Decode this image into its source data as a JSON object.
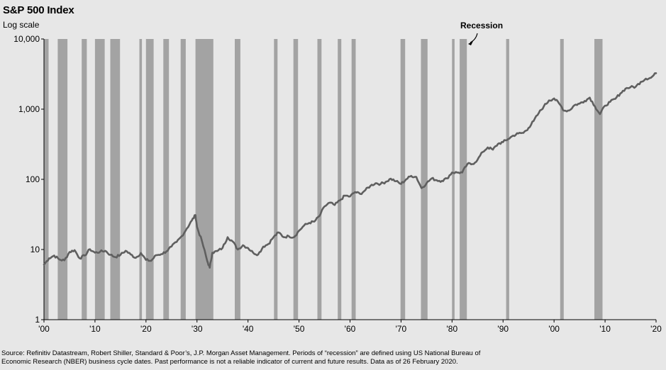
{
  "chart_data": {
    "type": "line",
    "title": "S&P 500 Index",
    "subtitle": "Log scale",
    "annotation": "Recession",
    "yscale": "log",
    "ylim": [
      1,
      10000
    ],
    "xlim": [
      1900,
      2020
    ],
    "yticks": [
      {
        "value": 10000,
        "label": "10,000"
      },
      {
        "value": 1000,
        "label": "1,000"
      },
      {
        "value": 100,
        "label": "100"
      },
      {
        "value": 10,
        "label": "10"
      },
      {
        "value": 1,
        "label": "1"
      }
    ],
    "xticks": [
      {
        "value": 1900,
        "label": "'00"
      },
      {
        "value": 1910,
        "label": "'10"
      },
      {
        "value": 1920,
        "label": "'20"
      },
      {
        "value": 1930,
        "label": "'30"
      },
      {
        "value": 1940,
        "label": "'40"
      },
      {
        "value": 1950,
        "label": "'50"
      },
      {
        "value": 1960,
        "label": "'60"
      },
      {
        "value": 1970,
        "label": "'70"
      },
      {
        "value": 1980,
        "label": "'80"
      },
      {
        "value": 1990,
        "label": "'90"
      },
      {
        "value": 2000,
        "label": "'00"
      },
      {
        "value": 2010,
        "label": "'10"
      },
      {
        "value": 2020,
        "label": "'20"
      }
    ],
    "recessions": [
      [
        1899.5,
        1900.9
      ],
      [
        1902.7,
        1904.6
      ],
      [
        1907.4,
        1908.4
      ],
      [
        1910.0,
        1911.9
      ],
      [
        1913.0,
        1914.9
      ],
      [
        1918.7,
        1919.2
      ],
      [
        1920.0,
        1921.5
      ],
      [
        1923.4,
        1924.5
      ],
      [
        1926.8,
        1927.8
      ],
      [
        1929.7,
        1933.2
      ],
      [
        1937.4,
        1938.5
      ],
      [
        1945.1,
        1945.8
      ],
      [
        1948.9,
        1949.8
      ],
      [
        1953.6,
        1954.4
      ],
      [
        1957.6,
        1958.3
      ],
      [
        1960.3,
        1961.1
      ],
      [
        1969.9,
        1970.8
      ],
      [
        1973.9,
        1975.2
      ],
      [
        1980.0,
        1980.5
      ],
      [
        1981.5,
        1982.9
      ],
      [
        1990.6,
        1991.2
      ],
      [
        2001.2,
        2001.9
      ],
      [
        2007.9,
        2009.5
      ]
    ],
    "series": [
      {
        "name": "S&P 500 Index",
        "x": [
          1900,
          1901,
          1902,
          1903,
          1904,
          1905,
          1906,
          1907,
          1908,
          1909,
          1910,
          1911,
          1912,
          1913,
          1914,
          1915,
          1916,
          1917,
          1918,
          1919,
          1920,
          1921,
          1922,
          1923,
          1924,
          1925,
          1926,
          1927,
          1928,
          1929,
          1929.7,
          1930,
          1931,
          1932,
          1932.5,
          1933,
          1934,
          1935,
          1936,
          1937,
          1938,
          1939,
          1940,
          1941,
          1942,
          1943,
          1944,
          1945,
          1946,
          1947,
          1948,
          1949,
          1950,
          1951,
          1952,
          1953,
          1954,
          1955,
          1956,
          1957,
          1958,
          1959,
          1960,
          1961,
          1962,
          1963,
          1964,
          1965,
          1966,
          1967,
          1968,
          1969,
          1970,
          1971,
          1972,
          1973,
          1974,
          1975,
          1976,
          1977,
          1978,
          1979,
          1980,
          1981,
          1982,
          1983,
          1984,
          1985,
          1986,
          1987,
          1988,
          1989,
          1990,
          1991,
          1992,
          1993,
          1994,
          1995,
          1996,
          1997,
          1998,
          1999,
          2000,
          2001,
          2002,
          2003,
          2004,
          2005,
          2006,
          2007,
          2008,
          2009,
          2010,
          2011,
          2012,
          2013,
          2014,
          2015,
          2016,
          2017,
          2018,
          2019,
          2020
        ],
        "values": [
          6.1,
          7.5,
          8.2,
          7.2,
          7.0,
          9.2,
          9.8,
          7.5,
          8.2,
          10.1,
          9.0,
          9.3,
          9.6,
          8.4,
          7.8,
          8.4,
          9.6,
          8.5,
          7.6,
          8.9,
          7.1,
          6.9,
          8.3,
          8.6,
          9.4,
          11.0,
          12.8,
          15.5,
          19.9,
          26.0,
          31.0,
          21.0,
          13.0,
          6.9,
          5.5,
          9.0,
          9.5,
          10.5,
          15.0,
          13.0,
          10.0,
          11.5,
          10.5,
          9.0,
          8.5,
          11.0,
          12.0,
          15.0,
          17.5,
          15.0,
          15.5,
          15.0,
          18.5,
          22.0,
          24.0,
          25.0,
          30.0,
          41.0,
          46.5,
          43.0,
          50.0,
          58.5,
          57.0,
          66.0,
          62.0,
          70.0,
          81.0,
          88.0,
          86.0,
          92.0,
          102.0,
          94.0,
          86.0,
          100.0,
          112.0,
          108.0,
          75.0,
          88.0,
          103.0,
          97.0,
          95.0,
          103.0,
          125.0,
          125.0,
          125.0,
          165.0,
          165.0,
          190.0,
          245.0,
          285.0,
          265.0,
          320.0,
          340.0,
          375.0,
          420.0,
          450.0,
          460.0,
          540.0,
          680.0,
          880.0,
          1100.0,
          1330.0,
          1420.0,
          1200.0,
          950.0,
          960.0,
          1140.0,
          1200.0,
          1310.0,
          1460.0,
          1100.0,
          850.0,
          1120.0,
          1270.0,
          1400.0,
          1680.0,
          1960.0,
          2060.0,
          2080.0,
          2450.0,
          2720.0,
          2800.0,
          3250.0
        ]
      }
    ]
  },
  "footer": {
    "source_line1": "Source: Refinitiv Datastream, Robert Shiller, Standard & Poor’s, J.P. Morgan Asset Management. Periods of “recession” are defined using US National Bureau of",
    "source_line2": "Economic Research (NBER) business cycle dates. Past performance is not a reliable indicator of current and future results. Data as of 26 February 2020."
  }
}
